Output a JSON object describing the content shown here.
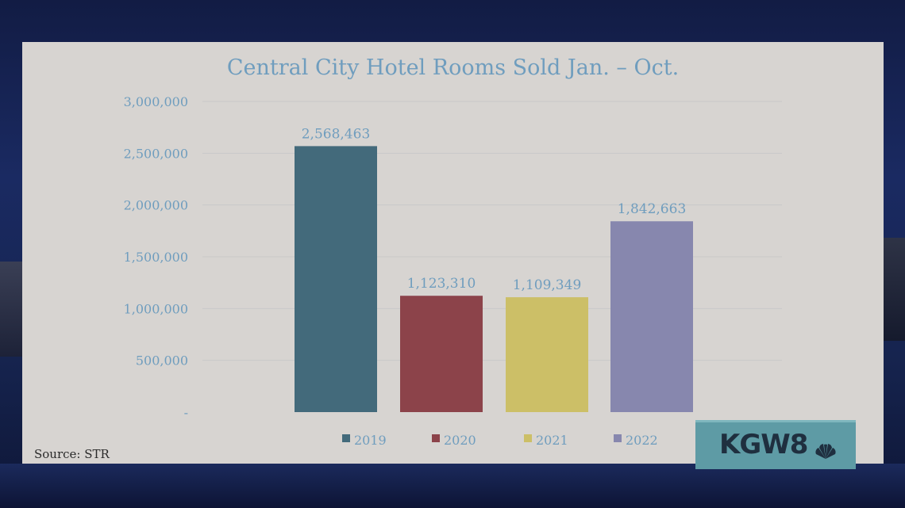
{
  "chart_data": {
    "type": "bar",
    "title": "Central City Hotel Rooms Sold Jan. – Oct.",
    "categories": [
      "2019",
      "2020",
      "2021",
      "2022"
    ],
    "values": [
      2568463,
      1123310,
      1109349,
      1842663
    ],
    "data_labels": [
      "2,568,463",
      "1,123,310",
      "1,109,349",
      "1,842,663"
    ],
    "colors": [
      "#436a7b",
      "#8c434a",
      "#ccbf67",
      "#8787ae"
    ],
    "ylim": [
      0,
      3000000
    ],
    "yticks": [
      0,
      500000,
      1000000,
      1500000,
      2000000,
      2500000,
      3000000
    ],
    "ytick_labels": [
      "-",
      "500,000",
      "1,000,000",
      "1,500,000",
      "2,000,000",
      "2,500,000",
      "3,000,000"
    ],
    "legend": [
      "2019",
      "2020",
      "2021",
      "2022"
    ],
    "legend_position": "bottom",
    "grid": true
  },
  "source": "Source: STR",
  "logo": {
    "text": "KGW8",
    "icon": "nbc-peacock-icon"
  }
}
